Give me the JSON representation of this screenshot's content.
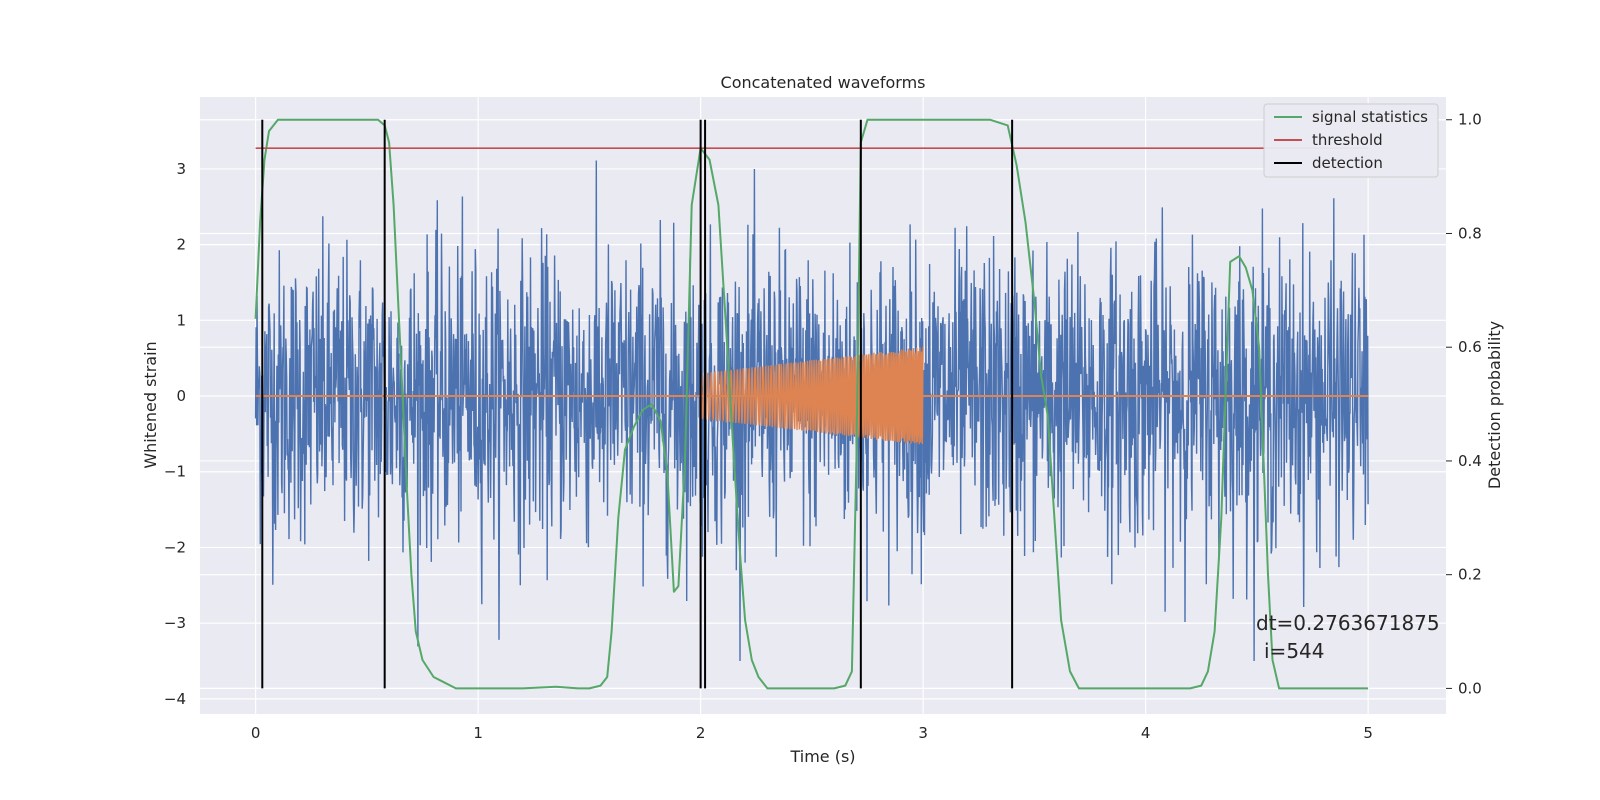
{
  "chart_data": {
    "type": "line",
    "title": "Concatenated waveforms",
    "xlabel": "Time (s)",
    "ylabel": "Whitened strain",
    "y2label": "Detection probability",
    "xlim": [
      -0.25,
      5.35
    ],
    "ylim": [
      -4.2,
      3.95
    ],
    "y2lim": [
      -0.045,
      1.04
    ],
    "xticks": [
      0,
      1,
      2,
      3,
      4,
      5
    ],
    "yticks": [
      -4,
      -3,
      -2,
      -1,
      0,
      1,
      2,
      3
    ],
    "y2ticks": [
      0.0,
      0.2,
      0.4,
      0.6,
      0.8,
      1.0
    ],
    "y2tick_labels": [
      "0.0",
      "0.2",
      "0.4",
      "0.6",
      "0.8",
      "1.0"
    ],
    "grid": true,
    "legend_position": "top-right",
    "annotation_lines": [
      "dt=0.2763671875",
      "i=544"
    ],
    "colors": {
      "strain": "#4c72b0",
      "template": "#dd8452",
      "signal_statistics": "#55a868",
      "threshold": "#c44e52",
      "detection": "#000000",
      "background": "#eaeaf2",
      "grid": "#ffffff"
    },
    "series": [
      {
        "name": "",
        "axis": "left",
        "kind": "noise",
        "x_range": [
          0,
          5
        ],
        "amplitude_envelope": 3.5
      },
      {
        "name": "",
        "axis": "left",
        "kind": "chirp",
        "x": [
          2.0,
          3.0
        ],
        "amplitude_start": 0.3,
        "amplitude_end": 0.65,
        "baseline": [
          0,
          5
        ]
      },
      {
        "name": "signal statistics",
        "axis": "right",
        "x": [
          0.0,
          0.02,
          0.04,
          0.06,
          0.1,
          0.15,
          0.2,
          0.3,
          0.4,
          0.5,
          0.55,
          0.58,
          0.6,
          0.62,
          0.65,
          0.68,
          0.7,
          0.72,
          0.75,
          0.8,
          0.85,
          0.9,
          1.0,
          1.2,
          1.35,
          1.45,
          1.5,
          1.55,
          1.58,
          1.6,
          1.63,
          1.66,
          1.7,
          1.74,
          1.78,
          1.82,
          1.85,
          1.88,
          1.9,
          1.93,
          1.96,
          2.0,
          2.04,
          2.08,
          2.12,
          2.15,
          2.18,
          2.2,
          2.23,
          2.26,
          2.3,
          2.5,
          2.6,
          2.65,
          2.68,
          2.7,
          2.72,
          2.75,
          2.8,
          2.9,
          3.1,
          3.3,
          3.38,
          3.42,
          3.46,
          3.5,
          3.53,
          3.56,
          3.59,
          3.62,
          3.66,
          3.7,
          3.8,
          4.0,
          4.2,
          4.25,
          4.28,
          4.31,
          4.34,
          4.38,
          4.42,
          4.45,
          4.48,
          4.51,
          4.53,
          4.55,
          4.57,
          4.6,
          4.7,
          5.0
        ],
        "values": [
          0.65,
          0.82,
          0.93,
          0.98,
          1.0,
          1.0,
          1.0,
          1.0,
          1.0,
          1.0,
          1.0,
          0.99,
          0.96,
          0.85,
          0.6,
          0.35,
          0.2,
          0.1,
          0.05,
          0.02,
          0.01,
          0.0,
          0.0,
          0.0,
          0.003,
          0.0,
          0.0,
          0.005,
          0.02,
          0.1,
          0.3,
          0.42,
          0.46,
          0.49,
          0.5,
          0.47,
          0.38,
          0.17,
          0.18,
          0.4,
          0.85,
          0.95,
          0.93,
          0.85,
          0.6,
          0.4,
          0.22,
          0.12,
          0.05,
          0.02,
          0.0,
          0.0,
          0.0,
          0.005,
          0.03,
          0.4,
          0.96,
          1.0,
          1.0,
          1.0,
          1.0,
          1.0,
          0.99,
          0.92,
          0.82,
          0.68,
          0.55,
          0.48,
          0.3,
          0.12,
          0.03,
          0.0,
          0.0,
          0.0,
          0.0,
          0.005,
          0.03,
          0.1,
          0.3,
          0.75,
          0.76,
          0.74,
          0.7,
          0.6,
          0.4,
          0.2,
          0.05,
          0.0,
          0.0,
          0.0
        ]
      },
      {
        "name": "threshold",
        "axis": "right",
        "x": [
          0,
          5
        ],
        "values": [
          0.95,
          0.95
        ]
      },
      {
        "name": "detection",
        "axis": "right",
        "kind": "vlines",
        "x": [
          0.03,
          0.58,
          2.0,
          2.02,
          2.72,
          3.4
        ],
        "ymin": 0.0,
        "ymax": 1.0
      }
    ]
  }
}
